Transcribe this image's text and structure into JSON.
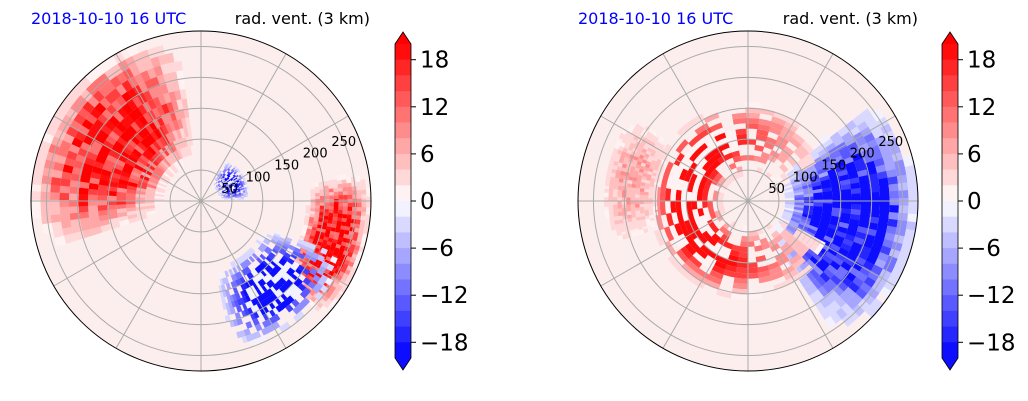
{
  "chart_data": [
    {
      "type": "heatmap",
      "projection": "polar",
      "title_left": "2018-10-10 16 UTC",
      "title_right": "rad. vent. (3 km)",
      "title_left_color": "#0000ff",
      "radial_ticks": [
        "50",
        "100",
        "150",
        "200",
        "250"
      ],
      "radial_range": [
        0,
        275
      ],
      "grid": true,
      "field_features": [
        {
          "kind": "positive",
          "sign": 1,
          "theta_deg": [
            95,
            200
          ],
          "r": [
            60,
            275
          ],
          "value": 16
        },
        {
          "kind": "positive",
          "sign": 1,
          "theta_deg": [
            -45,
            10
          ],
          "r": [
            170,
            275
          ],
          "value": 16
        },
        {
          "kind": "negative-band",
          "sign": -1,
          "theta_deg": [
            0,
            60
          ],
          "r": [
            30,
            80
          ],
          "value": -15
        },
        {
          "kind": "negative-band",
          "sign": -1,
          "theta_deg": [
            -80,
            -20
          ],
          "r": [
            110,
            250
          ],
          "value": -15
        }
      ]
    },
    {
      "type": "heatmap",
      "projection": "polar",
      "title_left": "2018-10-10 16 UTC",
      "title_right": "rad. vent. (3 km)",
      "title_left_color": "#0000ff",
      "radial_ticks": [
        "50",
        "100",
        "150",
        "200",
        "250"
      ],
      "radial_range": [
        0,
        275
      ],
      "grid": true,
      "field_features": [
        {
          "kind": "negative",
          "sign": -1,
          "theta_deg": [
            -60,
            40
          ],
          "r": [
            60,
            275
          ],
          "value": -17
        },
        {
          "kind": "spiral-positive",
          "sign": 1,
          "theta_deg": [
            20,
            340
          ],
          "r": [
            40,
            160
          ],
          "value": 14
        },
        {
          "kind": "positive-weak",
          "sign": 1,
          "theta_deg": [
            140,
            200
          ],
          "r": [
            140,
            240
          ],
          "value": 5
        }
      ]
    }
  ],
  "colorbar": {
    "ticks": [
      18,
      12,
      6,
      0,
      -6,
      -12,
      -18
    ],
    "tick_labels": [
      "18",
      "12",
      "6",
      "0",
      "−6",
      "−12",
      "−18"
    ],
    "range": [
      -20,
      20
    ],
    "levels": 20,
    "extend": "both",
    "cmap": "bwr",
    "colors": {
      "negative_end": "#0000ff",
      "middle": "#ffffff",
      "positive_end": "#ff0000"
    }
  }
}
